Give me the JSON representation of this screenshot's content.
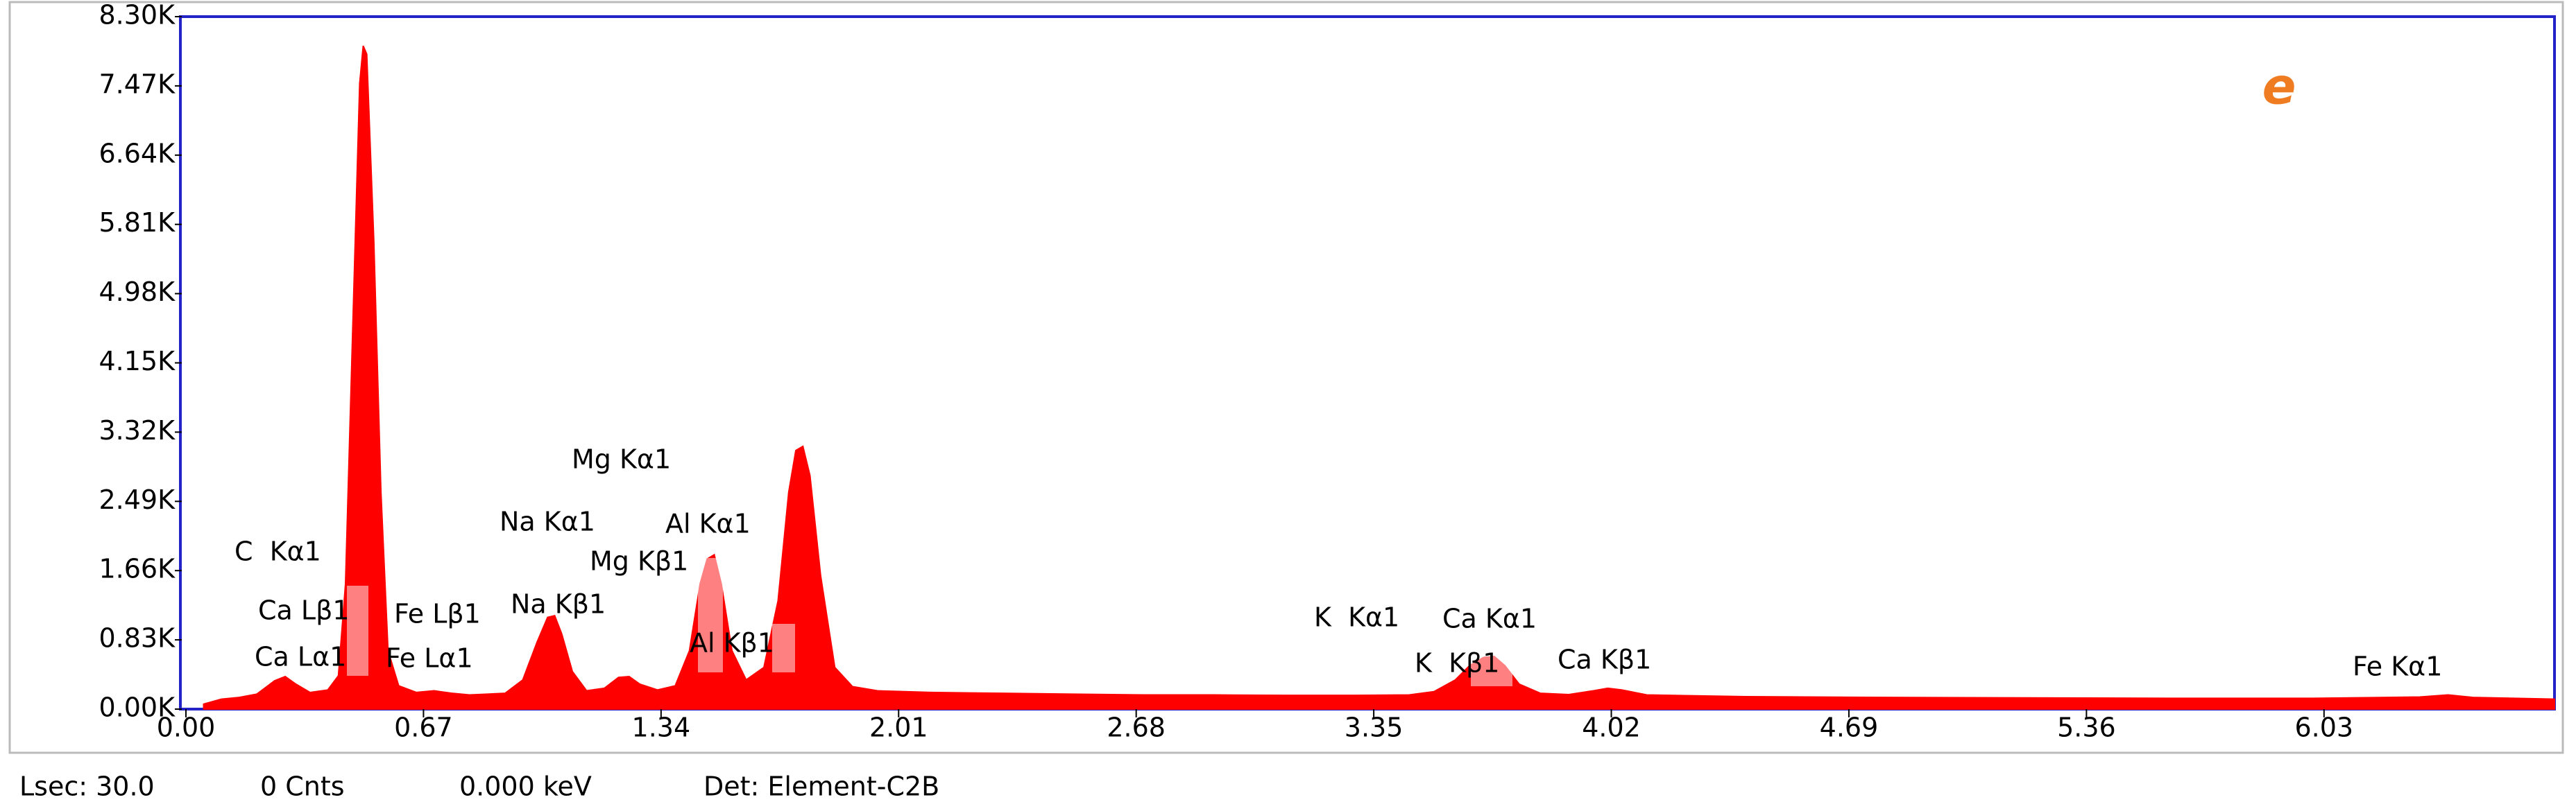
{
  "chart_data": {
    "type": "area",
    "panel_label": "e",
    "annotations": [
      "C  Kα1",
      "Ca Lβ1",
      "Fe Lβ1",
      "Ca Lα1",
      "Fe Lα1",
      "Na Kα1",
      "Na Kβ1",
      "Mg Kα1",
      "Mg Kβ1",
      "Al Kα1",
      "Al Kβ1",
      "K  Kα1",
      "K  Kβ1",
      "Ca Kα1",
      "Ca Kβ1",
      "Fe Kα1"
    ],
    "x": [
      0.05,
      0.1,
      0.15,
      0.2,
      0.25,
      0.28,
      0.31,
      0.35,
      0.4,
      0.43,
      0.45,
      0.47,
      0.49,
      0.5,
      0.51,
      0.53,
      0.55,
      0.57,
      0.6,
      0.65,
      0.7,
      0.75,
      0.8,
      0.85,
      0.9,
      0.95,
      0.99,
      1.02,
      1.04,
      1.06,
      1.09,
      1.13,
      1.18,
      1.22,
      1.25,
      1.28,
      1.33,
      1.38,
      1.42,
      1.45,
      1.47,
      1.49,
      1.51,
      1.54,
      1.58,
      1.63,
      1.67,
      1.7,
      1.72,
      1.74,
      1.76,
      1.79,
      1.83,
      1.88,
      1.95,
      2.1,
      2.3,
      2.5,
      2.7,
      2.9,
      3.1,
      3.3,
      3.45,
      3.52,
      3.58,
      3.62,
      3.66,
      3.69,
      3.72,
      3.76,
      3.82,
      3.9,
      3.97,
      4.01,
      4.05,
      4.12,
      4.4,
      4.8,
      5.2,
      5.6,
      6.0,
      6.3,
      6.38,
      6.45,
      6.68
    ],
    "series": [
      {
        "color": "#ff0000",
        "values": [
          60,
          120,
          140,
          180,
          340,
          390,
          300,
          200,
          230,
          400,
          1500,
          4500,
          7500,
          7950,
          7850,
          5600,
          2600,
          700,
          280,
          200,
          220,
          190,
          170,
          180,
          190,
          350,
          800,
          1100,
          1120,
          900,
          450,
          220,
          250,
          380,
          390,
          300,
          230,
          280,
          700,
          1500,
          1800,
          1850,
          1500,
          700,
          350,
          500,
          1300,
          2600,
          3100,
          3150,
          2800,
          1600,
          500,
          270,
          220,
          200,
          190,
          180,
          170,
          170,
          165,
          165,
          170,
          210,
          350,
          520,
          620,
          630,
          520,
          300,
          190,
          175,
          220,
          250,
          230,
          170,
          150,
          140,
          135,
          130,
          130,
          145,
          170,
          140,
          120
        ]
      }
    ],
    "xlim": [
      0,
      6.68
    ],
    "xticks": [
      {
        "value": 0,
        "label": "0.00"
      },
      0.67,
      1.34,
      2.01,
      2.68,
      3.35,
      4.02,
      4.69,
      5.36,
      6.03
    ],
    "ylim": [
      0,
      8300
    ],
    "yticks": [
      {
        "value": 0,
        "label": "0.00K"
      },
      {
        "value": 830,
        "label": "0.83K"
      },
      {
        "value": 1660,
        "label": "1.66K"
      },
      {
        "value": 2490,
        "label": "2.49K"
      },
      {
        "value": 3320,
        "label": "3.32K"
      },
      {
        "value": 4150,
        "label": "4.15K"
      },
      {
        "value": 4980,
        "label": "4.98K"
      },
      {
        "value": 5810,
        "label": "5.81K"
      },
      {
        "value": 6640,
        "label": "6.64K"
      },
      {
        "value": 7470,
        "label": "7.47K"
      },
      {
        "value": 8300,
        "label": "8.30K"
      }
    ],
    "status": [
      "Lsec: 30.0",
      "0 Cnts",
      "0.000 keV",
      "Det: Element-C2B"
    ]
  }
}
